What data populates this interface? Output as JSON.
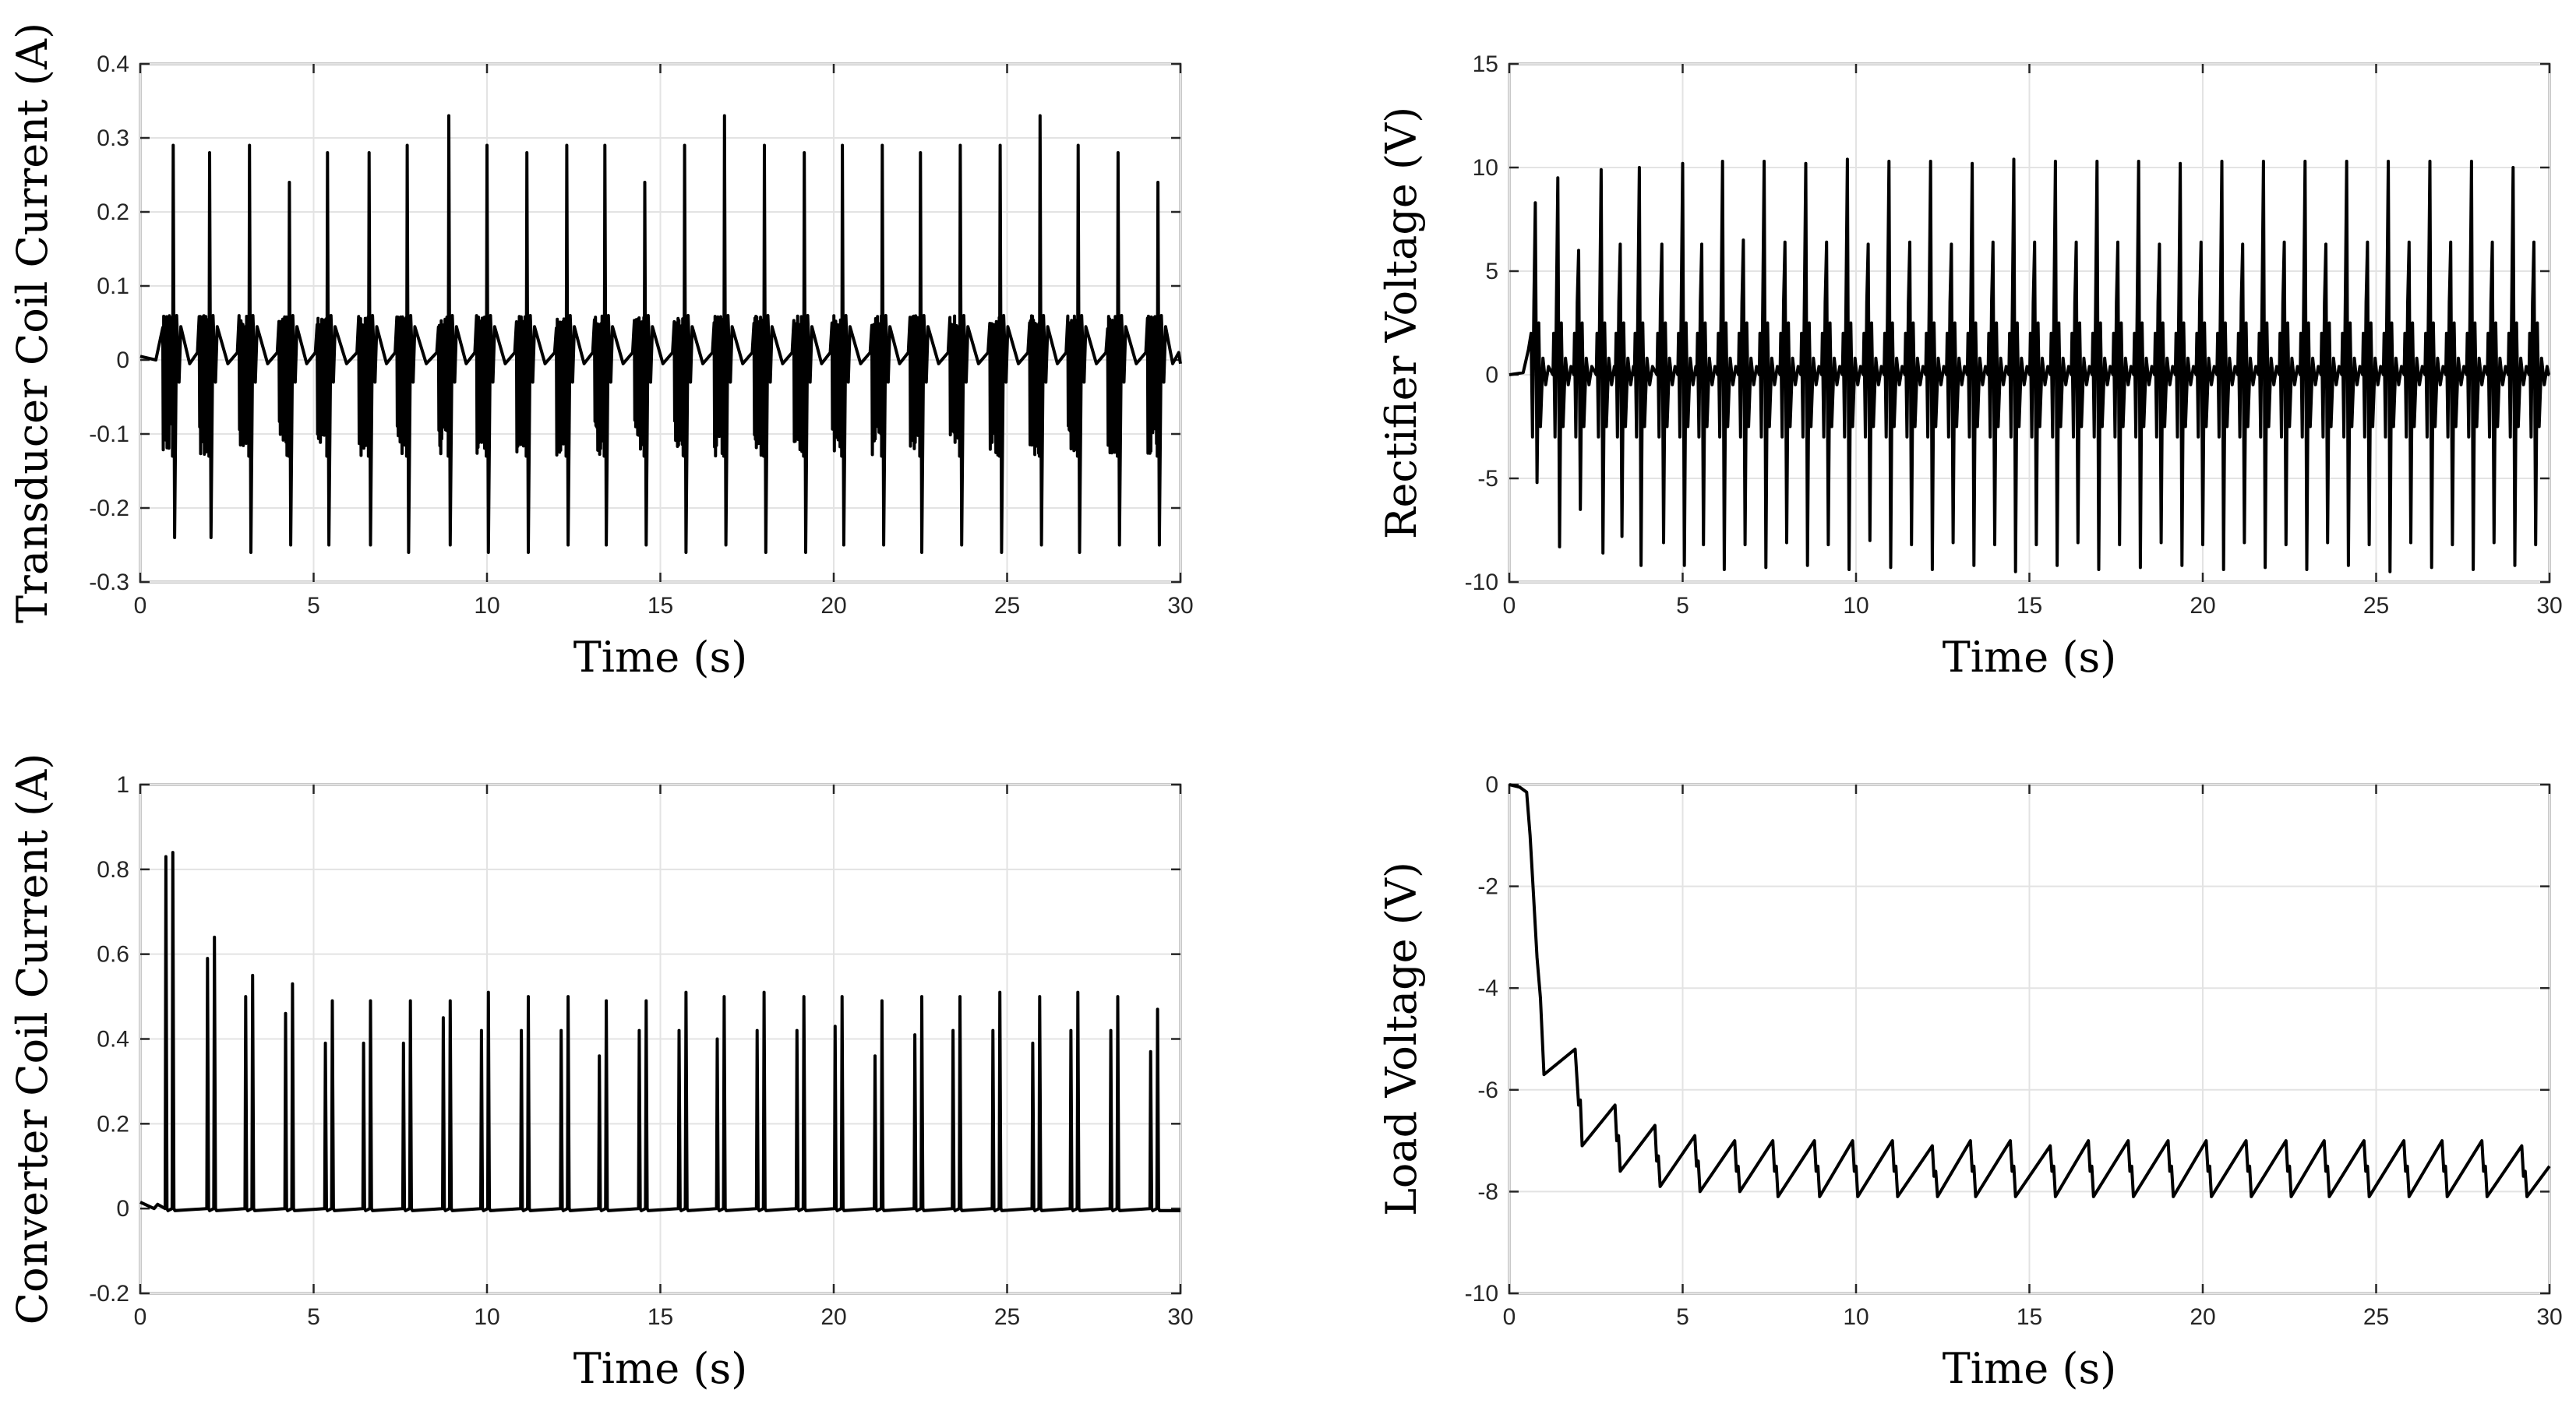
{
  "chart_data": [
    {
      "type": "line",
      "id": "transducer",
      "title": "",
      "xlabel": "Time (s)",
      "ylabel": "Transducer Coil Current (A)",
      "xlim": [
        0,
        30
      ],
      "ylim": [
        -0.3,
        0.4
      ],
      "xticks": [
        0,
        5,
        10,
        15,
        20,
        25,
        30
      ],
      "yticks": [
        -0.3,
        -0.2,
        -0.1,
        0,
        0.1,
        0.2,
        0.3,
        0.4
      ],
      "xtick_labels": [
        "0",
        "5",
        "10",
        "15",
        "20",
        "25",
        "30"
      ],
      "ytick_labels": [
        "-0.3",
        "-0.2",
        "-0.1",
        "0",
        "0.1",
        "0.2",
        "0.3",
        "0.4"
      ],
      "grid": true,
      "pulse_times": [
        0.95,
        2.0,
        3.15,
        4.3,
        5.4,
        6.6,
        7.7,
        8.9,
        10.0,
        11.15,
        12.3,
        13.4,
        14.55,
        15.7,
        16.85,
        18.0,
        19.15,
        20.25,
        21.4,
        22.5,
        23.65,
        24.8,
        25.95,
        27.05,
        28.2,
        29.35
      ],
      "peak_max": [
        0.29,
        0.28,
        0.29,
        0.24,
        0.28,
        0.28,
        0.29,
        0.33,
        0.29,
        0.28,
        0.29,
        0.29,
        0.24,
        0.29,
        0.33,
        0.29,
        0.28,
        0.29,
        0.29,
        0.28,
        0.29,
        0.29,
        0.33,
        0.29,
        0.28,
        0.24
      ],
      "peak_min": [
        -0.24,
        -0.24,
        -0.26,
        -0.25,
        -0.25,
        -0.25,
        -0.26,
        -0.25,
        -0.26,
        -0.26,
        -0.25,
        -0.25,
        -0.25,
        -0.26,
        -0.25,
        -0.26,
        -0.26,
        -0.25,
        -0.25,
        -0.26,
        -0.25,
        -0.26,
        -0.25,
        -0.26,
        -0.25,
        -0.25
      ],
      "envelope": {
        "osc_upper": 0.06,
        "osc_lower": -0.13,
        "baseline": -0.005
      }
    },
    {
      "type": "line",
      "id": "rectifier",
      "title": "",
      "xlabel": "Time (s)",
      "ylabel": "Rectifier Voltage (V)",
      "xlim": [
        0,
        30
      ],
      "ylim": [
        -10,
        15
      ],
      "xticks": [
        0,
        5,
        10,
        15,
        20,
        25,
        30
      ],
      "yticks": [
        -10,
        -5,
        0,
        5,
        10,
        15
      ],
      "xtick_labels": [
        "0",
        "5",
        "10",
        "15",
        "20",
        "25",
        "30"
      ],
      "ytick_labels": [
        "-10",
        "-5",
        "0",
        "5",
        "10",
        "15"
      ],
      "grid": true,
      "pulse_times": [
        0.75,
        1.4,
        2.0,
        2.65,
        3.2,
        3.75,
        4.4,
        5.0,
        5.55,
        6.15,
        6.75,
        7.35,
        7.95,
        8.55,
        9.15,
        9.75,
        10.35,
        10.95,
        11.55,
        12.15,
        12.75,
        13.35,
        13.95,
        14.55,
        15.15,
        15.75,
        16.35,
        16.95,
        17.55,
        18.15,
        18.75,
        19.35,
        19.95,
        20.55,
        21.15,
        21.75,
        22.35,
        22.95,
        23.55,
        24.15,
        24.75,
        25.35,
        25.95,
        26.55,
        27.15,
        27.75,
        28.35,
        28.95,
        29.55
      ],
      "peak_max": [
        8.3,
        9.5,
        6.0,
        9.9,
        6.3,
        10.0,
        6.3,
        10.2,
        6.3,
        10.3,
        6.5,
        10.3,
        6.4,
        10.2,
        6.4,
        10.4,
        6.3,
        10.3,
        6.4,
        10.3,
        6.3,
        10.2,
        6.4,
        10.4,
        6.4,
        10.3,
        6.4,
        10.3,
        6.4,
        10.3,
        6.3,
        10.2,
        6.4,
        10.3,
        6.3,
        10.3,
        6.4,
        10.3,
        6.3,
        10.3,
        6.4,
        10.3,
        6.4,
        10.3,
        6.4,
        10.3,
        6.4,
        10.0,
        6.4
      ],
      "peak_min": [
        -5.2,
        -8.3,
        -6.5,
        -8.6,
        -7.8,
        -9.2,
        -8.1,
        -9.2,
        -8.2,
        -9.4,
        -8.2,
        -9.3,
        -8.1,
        -9.2,
        -8.2,
        -9.4,
        -8.0,
        -9.3,
        -8.2,
        -9.4,
        -8.1,
        -9.2,
        -8.2,
        -9.5,
        -8.2,
        -9.2,
        -8.1,
        -9.4,
        -8.2,
        -9.3,
        -8.1,
        -9.2,
        -8.2,
        -9.4,
        -8.1,
        -9.3,
        -8.2,
        -9.4,
        -8.1,
        -9.2,
        -8.2,
        -9.5,
        -8.1,
        -9.3,
        -8.2,
        -9.4,
        -8.1,
        -9.2,
        -8.2
      ],
      "envelope": {
        "baseline": 0.0,
        "ripple": 0.8
      }
    },
    {
      "type": "line",
      "id": "converter",
      "title": "",
      "xlabel": "Time (s)",
      "ylabel": "Converter Coil Current (A)",
      "xlim": [
        0,
        30
      ],
      "ylim": [
        -0.2,
        1
      ],
      "xticks": [
        0,
        5,
        10,
        15,
        20,
        25,
        30
      ],
      "yticks": [
        -0.2,
        0,
        0.2,
        0.4,
        0.6,
        0.8,
        1
      ],
      "xtick_labels": [
        "0",
        "5",
        "10",
        "15",
        "20",
        "25",
        "30"
      ],
      "ytick_labels": [
        "-0.2",
        "0",
        "0.2",
        "0.4",
        "0.6",
        "0.8",
        "1"
      ],
      "grid": true,
      "pulse_times": [
        0.75,
        0.95,
        1.95,
        2.15,
        3.05,
        3.25,
        4.2,
        4.4,
        5.35,
        5.55,
        6.45,
        6.65,
        7.6,
        7.8,
        8.75,
        8.95,
        9.85,
        10.05,
        11.0,
        11.2,
        12.15,
        12.35,
        13.25,
        13.45,
        14.4,
        14.6,
        15.55,
        15.75,
        16.65,
        16.85,
        17.8,
        18.0,
        18.95,
        19.15,
        20.05,
        20.25,
        21.2,
        21.4,
        22.35,
        22.55,
        23.45,
        23.65,
        24.6,
        24.8,
        25.75,
        25.95,
        26.85,
        27.05,
        28.0,
        28.2,
        29.15,
        29.35
      ],
      "peak_max": [
        0.83,
        0.84,
        0.59,
        0.64,
        0.5,
        0.55,
        0.46,
        0.53,
        0.39,
        0.49,
        0.39,
        0.49,
        0.39,
        0.49,
        0.45,
        0.49,
        0.42,
        0.51,
        0.42,
        0.5,
        0.42,
        0.5,
        0.36,
        0.49,
        0.42,
        0.49,
        0.42,
        0.51,
        0.4,
        0.5,
        0.42,
        0.51,
        0.42,
        0.5,
        0.43,
        0.5,
        0.36,
        0.49,
        0.41,
        0.5,
        0.42,
        0.5,
        0.42,
        0.51,
        0.39,
        0.5,
        0.42,
        0.51,
        0.42,
        0.5,
        0.37,
        0.47
      ],
      "envelope": {
        "baseline": 0.0
      }
    },
    {
      "type": "line",
      "id": "load",
      "title": "",
      "xlabel": "Time (s)",
      "ylabel": "Load Voltage (V)",
      "xlim": [
        0,
        30
      ],
      "ylim": [
        -10,
        0
      ],
      "xticks": [
        0,
        5,
        10,
        15,
        20,
        25,
        30
      ],
      "yticks": [
        -10,
        -8,
        -6,
        -4,
        -2,
        0
      ],
      "xtick_labels": [
        "0",
        "5",
        "10",
        "15",
        "20",
        "25",
        "30"
      ],
      "ytick_labels": [
        "-10",
        "-8",
        "-6",
        "-4",
        "-2",
        "0"
      ],
      "grid": true,
      "points": [
        [
          0,
          0
        ],
        [
          0.3,
          -0.05
        ],
        [
          0.5,
          -0.15
        ],
        [
          0.6,
          -1.0
        ],
        [
          0.7,
          -2.2
        ],
        [
          0.8,
          -3.4
        ],
        [
          0.9,
          -4.2
        ],
        [
          1.0,
          -5.7
        ],
        [
          1.9,
          -5.2
        ],
        [
          2.0,
          -6.3
        ],
        [
          2.05,
          -6.2
        ],
        [
          2.1,
          -7.1
        ],
        [
          3.05,
          -6.3
        ],
        [
          3.1,
          -7.0
        ],
        [
          3.15,
          -6.9
        ],
        [
          3.2,
          -7.6
        ],
        [
          4.2,
          -6.7
        ],
        [
          4.25,
          -7.4
        ],
        [
          4.3,
          -7.3
        ],
        [
          4.35,
          -7.9
        ],
        [
          5.35,
          -6.9
        ],
        [
          5.4,
          -7.5
        ],
        [
          5.45,
          -7.4
        ],
        [
          5.5,
          -8.0
        ],
        [
          6.5,
          -7.0
        ],
        [
          6.55,
          -7.6
        ],
        [
          6.6,
          -7.5
        ],
        [
          6.65,
          -8.0
        ],
        [
          7.6,
          -7.0
        ],
        [
          7.65,
          -7.6
        ],
        [
          7.7,
          -7.5
        ],
        [
          7.75,
          -8.1
        ],
        [
          8.8,
          -7.0
        ],
        [
          8.85,
          -7.6
        ],
        [
          8.9,
          -7.5
        ],
        [
          8.95,
          -8.1
        ],
        [
          9.9,
          -7.0
        ],
        [
          9.95,
          -7.6
        ],
        [
          10.0,
          -7.5
        ],
        [
          10.05,
          -8.1
        ],
        [
          11.05,
          -7.0
        ],
        [
          11.1,
          -7.6
        ],
        [
          11.15,
          -7.5
        ],
        [
          11.2,
          -8.1
        ],
        [
          12.2,
          -7.1
        ],
        [
          12.25,
          -7.7
        ],
        [
          12.3,
          -7.6
        ],
        [
          12.35,
          -8.1
        ],
        [
          13.3,
          -7.0
        ],
        [
          13.35,
          -7.6
        ],
        [
          13.4,
          -7.5
        ],
        [
          13.45,
          -8.1
        ],
        [
          14.45,
          -7.0
        ],
        [
          14.5,
          -7.6
        ],
        [
          14.55,
          -7.5
        ],
        [
          14.6,
          -8.1
        ],
        [
          15.6,
          -7.1
        ],
        [
          15.65,
          -7.6
        ],
        [
          15.7,
          -7.5
        ],
        [
          15.75,
          -8.1
        ],
        [
          16.7,
          -7.0
        ],
        [
          16.75,
          -7.6
        ],
        [
          16.8,
          -7.5
        ],
        [
          16.85,
          -8.1
        ],
        [
          17.85,
          -7.0
        ],
        [
          17.9,
          -7.6
        ],
        [
          17.95,
          -7.5
        ],
        [
          18.0,
          -8.1
        ],
        [
          19.0,
          -7.0
        ],
        [
          19.05,
          -7.6
        ],
        [
          19.1,
          -7.5
        ],
        [
          19.15,
          -8.1
        ],
        [
          20.1,
          -7.0
        ],
        [
          20.15,
          -7.6
        ],
        [
          20.2,
          -7.5
        ],
        [
          20.25,
          -8.1
        ],
        [
          21.25,
          -7.0
        ],
        [
          21.3,
          -7.6
        ],
        [
          21.35,
          -7.5
        ],
        [
          21.4,
          -8.1
        ],
        [
          22.4,
          -7.0
        ],
        [
          22.45,
          -7.6
        ],
        [
          22.5,
          -7.5
        ],
        [
          22.55,
          -8.1
        ],
        [
          23.5,
          -7.0
        ],
        [
          23.55,
          -7.6
        ],
        [
          23.6,
          -7.5
        ],
        [
          23.65,
          -8.1
        ],
        [
          24.65,
          -7.0
        ],
        [
          24.7,
          -7.6
        ],
        [
          24.75,
          -7.5
        ],
        [
          24.8,
          -8.1
        ],
        [
          25.8,
          -7.0
        ],
        [
          25.85,
          -7.6
        ],
        [
          25.9,
          -7.5
        ],
        [
          25.95,
          -8.1
        ],
        [
          26.9,
          -7.0
        ],
        [
          26.95,
          -7.6
        ],
        [
          27.0,
          -7.5
        ],
        [
          27.05,
          -8.1
        ],
        [
          28.05,
          -7.0
        ],
        [
          28.1,
          -7.6
        ],
        [
          28.15,
          -7.5
        ],
        [
          28.2,
          -8.1
        ],
        [
          29.2,
          -7.1
        ],
        [
          29.25,
          -7.7
        ],
        [
          29.3,
          -7.6
        ],
        [
          29.35,
          -8.1
        ],
        [
          30.0,
          -7.5
        ]
      ]
    }
  ]
}
